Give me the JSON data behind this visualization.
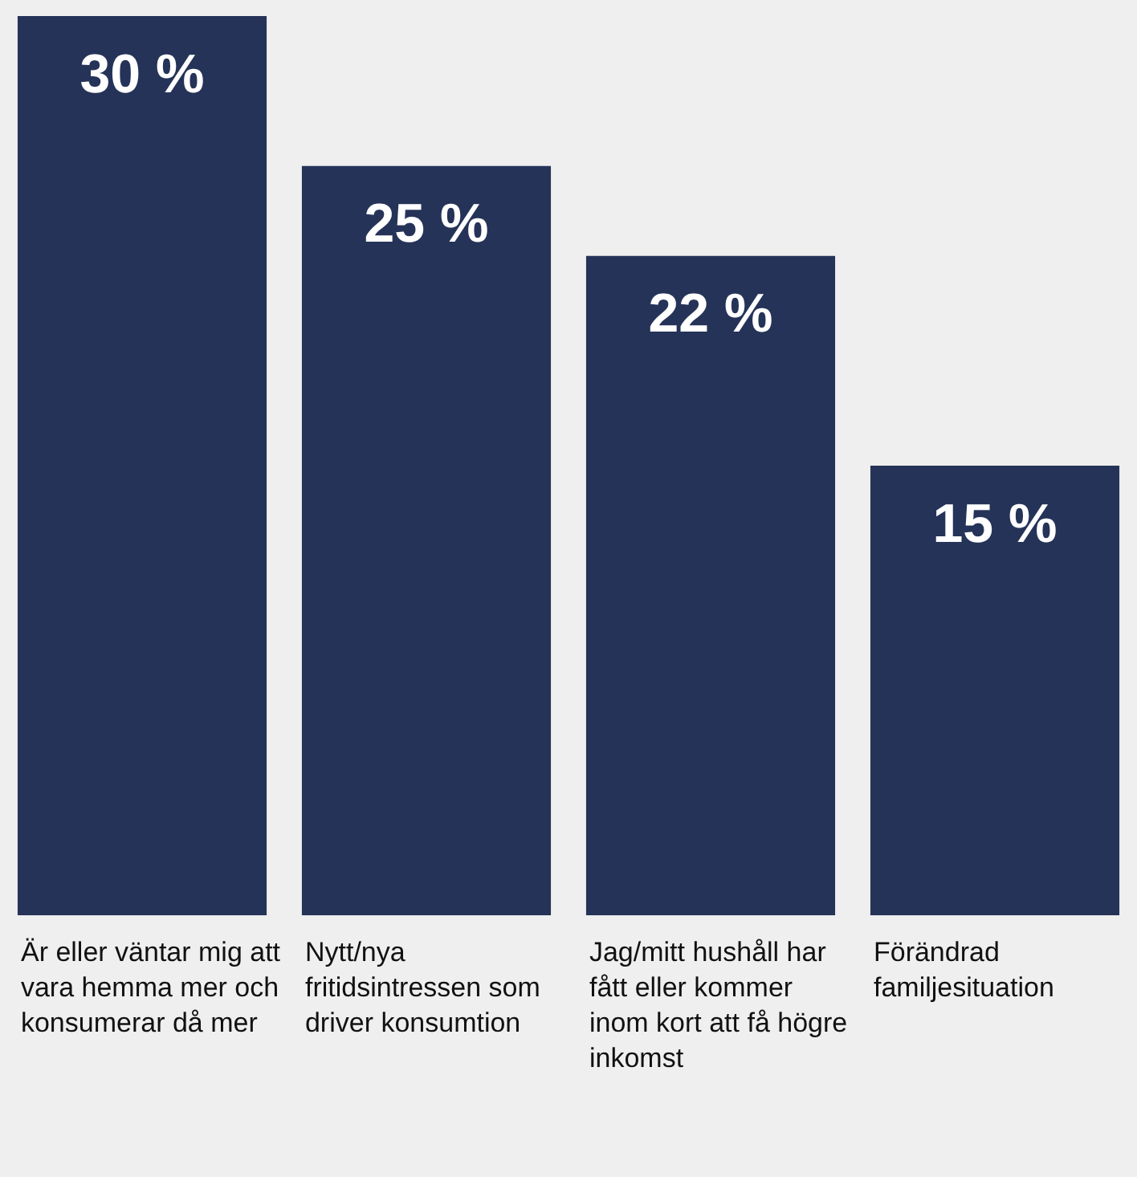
{
  "chart_data": {
    "type": "bar",
    "categories": [
      "Är eller väntar mig att vara hemma mer och konsumerar då mer",
      "Nytt/nya fritidsintressen som driver konsumtion",
      "Jag/mitt hushåll har fått eller kommer inom kort att få högre inkomst",
      "Förändrad familjesituation"
    ],
    "values": [
      30,
      25,
      22,
      15
    ],
    "value_labels": [
      "30 %",
      "25 %",
      "22 %",
      "15 %"
    ],
    "color": "#253358",
    "grid": false,
    "legend": false
  }
}
